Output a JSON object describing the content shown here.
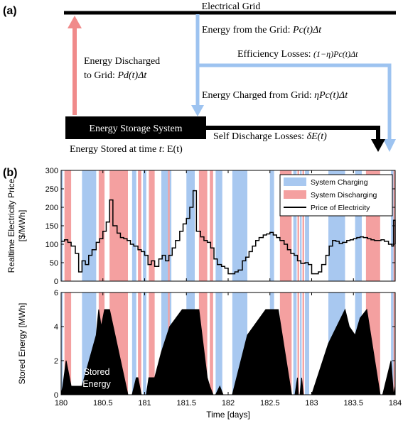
{
  "panel_a": {
    "label": "(a)",
    "grid_label": "Electrical Grid",
    "energy_from_grid_text": "Energy from the Grid: ",
    "energy_from_grid_formula": "Pc(t)Δt",
    "efficiency_losses_text": "Efficiency Losses: ",
    "efficiency_losses_formula": "(1−η)Pc(t)Δt",
    "discharged_line1": "Energy Discharged",
    "discharged_line2": "to Grid: ",
    "discharged_formula": "Pd(t)Δt",
    "charged_text": "Energy Charged from Grid: ",
    "charged_formula": "ηPc(t)Δt",
    "storage_box_label": "Energy Storage System",
    "self_discharge_text": "Self Discharge Losses: ",
    "self_discharge_formula": "δE(t)",
    "stored_at_text": "Energy Stored at time ",
    "stored_at_t": "t",
    "stored_at_formula": ": E(t)",
    "colors": {
      "discharge_arrow": "#f08a8a",
      "charge_arrow": "#9dc3f0",
      "self_discharge_arrow": "#000000",
      "box": "#000000"
    }
  },
  "panel_b": {
    "label": "(b)"
  },
  "chart_data": [
    {
      "type": "line",
      "title": "",
      "ylabel_line1": "Realtime Electricity Price",
      "ylabel_line2": "[$/MWh]",
      "ylim": [
        0,
        300
      ],
      "yticks": [
        "0",
        "50",
        "100",
        "150",
        "200",
        "250",
        "300"
      ],
      "xlim": [
        180,
        184
      ],
      "legend": {
        "placement": "top-right",
        "entries": [
          {
            "label": "System Charging",
            "color": "#a8c8f0"
          },
          {
            "label": "System Discharging",
            "color": "#f4a0a0"
          },
          {
            "label": "Price of Electricity",
            "color": "#000000"
          }
        ]
      },
      "charging_intervals": [
        [
          180,
          180.02
        ],
        [
          180.25,
          180.42
        ],
        [
          180.85,
          180.9
        ],
        [
          180.98,
          181.02
        ],
        [
          181.2,
          181.32
        ],
        [
          181.5,
          181.6
        ],
        [
          181.85,
          181.93
        ],
        [
          182.05,
          182.23
        ],
        [
          182.5,
          182.55
        ],
        [
          182.78,
          182.82
        ],
        [
          182.86,
          182.88
        ],
        [
          182.92,
          182.97
        ],
        [
          183.2,
          183.4
        ],
        [
          183.52,
          183.6
        ],
        [
          183.95,
          183.98
        ]
      ],
      "discharging_intervals": [
        [
          180.04,
          180.12
        ],
        [
          180.45,
          180.52
        ],
        [
          180.58,
          180.8
        ],
        [
          180.92,
          180.96
        ],
        [
          181.05,
          181.12
        ],
        [
          181.28,
          181.3
        ],
        [
          181.65,
          181.75
        ],
        [
          181.78,
          181.82
        ],
        [
          182.62,
          182.76
        ],
        [
          182.83,
          182.85
        ],
        [
          182.89,
          182.91
        ],
        [
          183.65,
          183.82
        ],
        [
          183.98,
          184
        ]
      ],
      "price": {
        "name": "Price of Electricity",
        "x": [
          180,
          180.04,
          180.08,
          180.12,
          180.17,
          180.21,
          180.25,
          180.29,
          180.33,
          180.37,
          180.42,
          180.46,
          180.5,
          180.54,
          180.58,
          180.62,
          180.67,
          180.71,
          180.75,
          180.79,
          180.83,
          180.87,
          180.92,
          180.96,
          181,
          181.04,
          181.08,
          181.12,
          181.17,
          181.21,
          181.25,
          181.29,
          181.33,
          181.37,
          181.42,
          181.46,
          181.5,
          181.54,
          181.58,
          181.62,
          181.67,
          181.71,
          181.75,
          181.79,
          181.83,
          181.87,
          181.92,
          181.96,
          182,
          182.04,
          182.08,
          182.12,
          182.17,
          182.21,
          182.25,
          182.29,
          182.33,
          182.37,
          182.42,
          182.46,
          182.5,
          182.54,
          182.58,
          182.62,
          182.67,
          182.71,
          182.75,
          182.79,
          182.83,
          182.87,
          182.92,
          182.96,
          183,
          183.04,
          183.08,
          183.12,
          183.17,
          183.21,
          183.25,
          183.29,
          183.33,
          183.37,
          183.42,
          183.46,
          183.5,
          183.54,
          183.58,
          183.62,
          183.67,
          183.71,
          183.75,
          183.79,
          183.83,
          183.87,
          183.92,
          183.96,
          183.98,
          184
        ],
        "y": [
          108,
          112,
          105,
          95,
          75,
          25,
          55,
          45,
          70,
          85,
          105,
          115,
          135,
          160,
          220,
          150,
          130,
          118,
          115,
          110,
          100,
          95,
          85,
          80,
          70,
          45,
          55,
          40,
          60,
          70,
          55,
          70,
          90,
          110,
          135,
          155,
          170,
          200,
          245,
          135,
          120,
          110,
          105,
          90,
          60,
          45,
          40,
          35,
          20,
          20,
          25,
          30,
          55,
          65,
          80,
          95,
          110,
          118,
          125,
          128,
          132,
          125,
          118,
          110,
          100,
          85,
          75,
          70,
          55,
          48,
          50,
          45,
          20,
          20,
          25,
          45,
          70,
          95,
          110,
          108,
          102,
          105,
          110,
          112,
          115,
          118,
          120,
          118,
          115,
          112,
          110,
          110,
          112,
          108,
          100,
          95,
          165,
          100
        ]
      }
    },
    {
      "type": "area",
      "title": "",
      "xlabel": "Time [days]",
      "ylabel": "Stored Energy [MWh]",
      "ylim": [
        0,
        6
      ],
      "yticks": [
        "0",
        "2",
        "4",
        "6"
      ],
      "xlim": [
        180,
        184
      ],
      "xticks": [
        "180",
        "180.5",
        "181",
        "181.5",
        "182",
        "182.5",
        "183",
        "183.5",
        "184"
      ],
      "annotation_line1": "Stored",
      "annotation_line2": "Energy",
      "series": [
        {
          "name": "Stored Energy",
          "x": [
            180,
            180.02,
            180.06,
            180.12,
            180.25,
            180.42,
            180.45,
            180.48,
            180.52,
            180.58,
            180.8,
            180.85,
            180.9,
            180.92,
            180.96,
            181.0,
            181.02,
            181.05,
            181.12,
            181.2,
            181.3,
            181.45,
            181.6,
            181.65,
            181.75,
            181.78,
            181.82,
            181.85,
            181.9,
            181.94,
            182.05,
            182.23,
            182.45,
            182.55,
            182.6,
            182.76,
            182.8,
            182.83,
            182.84,
            182.86,
            182.88,
            182.9,
            182.92,
            182.96,
            183.0,
            183.2,
            183.4,
            183.45,
            183.52,
            183.58,
            183.66,
            183.82,
            183.85,
            183.95,
            183.98,
            184
          ],
          "y": [
            0,
            0.5,
            2.0,
            0.5,
            0.5,
            3.5,
            5.0,
            4.0,
            5.0,
            5.0,
            0,
            0,
            1.0,
            1.0,
            0,
            0,
            0,
            1.0,
            1.0,
            2.5,
            4.0,
            5.0,
            5.0,
            5.0,
            1.0,
            0.5,
            0,
            0,
            0.5,
            0,
            0,
            3.5,
            5.0,
            5.0,
            5.0,
            0,
            0,
            1.0,
            0,
            0,
            1.0,
            0,
            0,
            0,
            0,
            3.0,
            5.0,
            4.0,
            3.5,
            4.5,
            5.0,
            0,
            0,
            2.0,
            0,
            0.5
          ]
        }
      ]
    }
  ]
}
